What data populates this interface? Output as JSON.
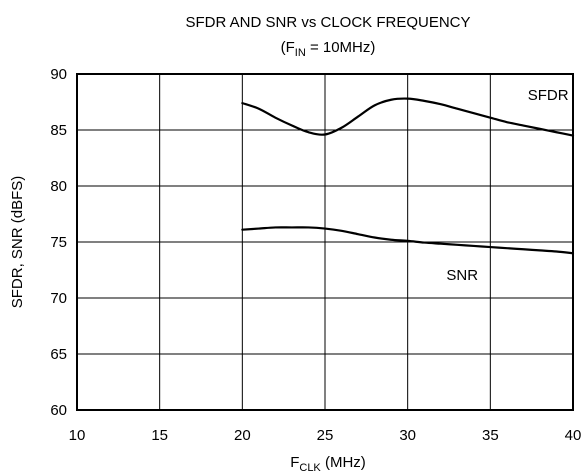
{
  "chart_data": {
    "type": "line",
    "title": "SFDR AND SNR vs CLOCK FREQUENCY",
    "subtitle": {
      "prefix": "(F",
      "sub": "IN",
      "suffix": " = 10MHz)"
    },
    "xlabel": {
      "main": "F",
      "sub": "CLK",
      "suffix": " (MHz)"
    },
    "ylabel": "SFDR, SNR (dBFS)",
    "xlim": [
      10,
      40
    ],
    "ylim": [
      60,
      90
    ],
    "x_ticks": [
      "10",
      "15",
      "20",
      "25",
      "30",
      "35",
      "40"
    ],
    "y_ticks": [
      "60",
      "65",
      "70",
      "75",
      "80",
      "85",
      "90"
    ],
    "grid": true,
    "series": [
      {
        "name": "SFDR",
        "x": [
          20,
          21,
          22,
          23,
          24,
          25,
          26,
          27,
          28,
          29,
          30,
          31,
          32,
          33,
          34,
          35,
          36,
          37,
          38,
          39,
          40
        ],
        "values": [
          87.4,
          86.9,
          86.1,
          85.4,
          84.8,
          84.6,
          85.2,
          86.2,
          87.2,
          87.7,
          87.8,
          87.6,
          87.3,
          86.9,
          86.5,
          86.1,
          85.7,
          85.4,
          85.1,
          84.8,
          84.5
        ]
      },
      {
        "name": "SNR",
        "x": [
          20,
          21,
          22,
          23,
          24,
          25,
          26,
          27,
          28,
          29,
          30,
          31,
          32,
          33,
          34,
          35,
          36,
          37,
          38,
          39,
          40
        ],
        "values": [
          76.1,
          76.2,
          76.3,
          76.3,
          76.3,
          76.2,
          76.0,
          75.7,
          75.4,
          75.2,
          75.1,
          74.95,
          74.85,
          74.75,
          74.65,
          74.55,
          74.45,
          74.35,
          74.25,
          74.15,
          74.0
        ]
      }
    ]
  }
}
